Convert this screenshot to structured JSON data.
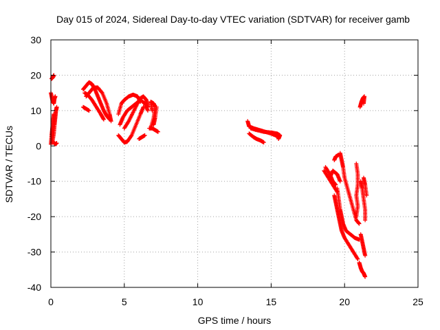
{
  "chart_data": {
    "type": "scatter",
    "title": "Day 015 of 2024, Sidereal Day-to-day VTEC variation (SDTVAR) for receiver gamb",
    "xlabel": "GPS time / hours",
    "ylabel": "SDTVAR / TECUs",
    "xlim": [
      0,
      25
    ],
    "ylim": [
      -40,
      30
    ],
    "xticks": [
      0,
      5,
      10,
      15,
      20,
      25
    ],
    "yticks": [
      -40,
      -30,
      -20,
      -10,
      0,
      10,
      20,
      30
    ],
    "grid": true,
    "marker": "plus",
    "color": "#ff0000",
    "tracks": [
      [
        [
          0.0,
          15.0
        ],
        [
          0.1,
          13.0
        ],
        [
          0.2,
          12.0
        ],
        [
          0.25,
          13.5
        ],
        [
          0.3,
          14.0
        ]
      ],
      [
        [
          0.0,
          0.5
        ],
        [
          0.05,
          3.0
        ],
        [
          0.1,
          5.0
        ],
        [
          0.15,
          7.0
        ],
        [
          0.2,
          9.0
        ]
      ],
      [
        [
          0.1,
          1.0
        ],
        [
          0.2,
          3.5
        ],
        [
          0.25,
          6.0
        ],
        [
          0.3,
          8.0
        ],
        [
          0.35,
          10.0
        ],
        [
          0.4,
          11.0
        ]
      ],
      [
        [
          0.05,
          19.0
        ],
        [
          0.15,
          19.5
        ],
        [
          0.2,
          20.0
        ]
      ],
      [
        [
          0.2,
          1.0
        ],
        [
          0.3,
          0.5
        ],
        [
          0.4,
          0.8
        ]
      ],
      [
        [
          2.2,
          11.0
        ],
        [
          2.4,
          10.5
        ],
        [
          2.6,
          10.0
        ]
      ],
      [
        [
          2.2,
          16.0
        ],
        [
          2.4,
          17.0
        ],
        [
          2.6,
          18.0
        ],
        [
          2.8,
          17.5
        ],
        [
          3.0,
          16.0
        ],
        [
          3.2,
          14.0
        ],
        [
          3.4,
          12.0
        ],
        [
          3.6,
          10.0
        ],
        [
          3.8,
          8.5
        ],
        [
          4.0,
          7.5
        ]
      ],
      [
        [
          2.4,
          14.0
        ],
        [
          2.6,
          15.0
        ],
        [
          2.9,
          16.5
        ],
        [
          3.2,
          16.5
        ],
        [
          3.5,
          15.0
        ],
        [
          3.8,
          12.0
        ],
        [
          4.0,
          9.0
        ],
        [
          4.1,
          7.0
        ]
      ],
      [
        [
          2.3,
          15.0
        ],
        [
          2.5,
          14.5
        ],
        [
          2.8,
          13.0
        ],
        [
          3.1,
          11.0
        ],
        [
          3.4,
          9.0
        ],
        [
          3.6,
          7.5
        ]
      ],
      [
        [
          4.6,
          9.0
        ],
        [
          4.8,
          12.0
        ],
        [
          5.0,
          13.0
        ],
        [
          5.3,
          14.0
        ],
        [
          5.6,
          14.5
        ],
        [
          5.9,
          14.0
        ],
        [
          6.1,
          12.5
        ]
      ],
      [
        [
          4.7,
          6.0
        ],
        [
          4.9,
          8.0
        ],
        [
          5.2,
          10.0
        ],
        [
          5.5,
          11.0
        ],
        [
          5.8,
          12.0
        ],
        [
          6.1,
          13.0
        ],
        [
          6.4,
          12.0
        ],
        [
          6.6,
          10.0
        ]
      ],
      [
        [
          4.6,
          3.0
        ],
        [
          4.8,
          2.0
        ],
        [
          5.0,
          1.0
        ],
        [
          5.2,
          1.2
        ],
        [
          5.5,
          3.0
        ],
        [
          5.8,
          6.0
        ],
        [
          6.1,
          9.0
        ],
        [
          6.3,
          11.0
        ]
      ],
      [
        [
          5.0,
          5.0
        ],
        [
          5.3,
          7.0
        ],
        [
          5.6,
          9.5
        ],
        [
          5.9,
          12.0
        ],
        [
          6.1,
          13.5
        ],
        [
          6.3,
          14.0
        ],
        [
          6.5,
          13.0
        ],
        [
          6.6,
          11.0
        ]
      ],
      [
        [
          6.0,
          2.0
        ],
        [
          6.2,
          2.5
        ],
        [
          6.4,
          3.0
        ]
      ],
      [
        [
          6.8,
          5.0
        ],
        [
          7.0,
          8.0
        ],
        [
          7.1,
          11.0
        ],
        [
          7.0,
          12.0
        ],
        [
          6.8,
          12.5
        ],
        [
          6.9,
          10.0
        ]
      ],
      [
        [
          7.0,
          6.0
        ],
        [
          7.1,
          8.0
        ],
        [
          7.2,
          11.0
        ]
      ],
      [
        [
          6.7,
          5.0
        ],
        [
          6.9,
          5.0
        ],
        [
          7.1,
          4.5
        ],
        [
          7.3,
          4.0
        ]
      ],
      [
        [
          13.4,
          7.0
        ],
        [
          13.5,
          5.5
        ],
        [
          13.8,
          5.0
        ],
        [
          14.2,
          4.5
        ],
        [
          14.6,
          4.0
        ],
        [
          15.0,
          3.5
        ],
        [
          15.3,
          3.0
        ],
        [
          15.5,
          2.5
        ]
      ],
      [
        [
          13.5,
          3.5
        ],
        [
          13.8,
          2.5
        ],
        [
          14.0,
          2.0
        ],
        [
          14.3,
          1.5
        ],
        [
          14.5,
          1.0
        ]
      ],
      [
        [
          13.6,
          5.0
        ],
        [
          14.0,
          4.5
        ],
        [
          14.5,
          4.0
        ],
        [
          15.0,
          3.8
        ],
        [
          15.4,
          3.5
        ],
        [
          15.6,
          3.0
        ],
        [
          15.5,
          2.0
        ]
      ],
      [
        [
          18.6,
          -7.0
        ],
        [
          18.9,
          -9.0
        ],
        [
          19.2,
          -11.0
        ],
        [
          19.5,
          -13.0
        ]
      ],
      [
        [
          18.7,
          -6.0
        ],
        [
          19.0,
          -8.0
        ],
        [
          19.2,
          -10.0
        ],
        [
          19.4,
          -11.0
        ]
      ],
      [
        [
          19.3,
          -14.0
        ],
        [
          19.4,
          -16.0
        ],
        [
          19.5,
          -18.0
        ],
        [
          19.6,
          -20.0
        ],
        [
          19.7,
          -22.0
        ],
        [
          19.8,
          -24.0
        ],
        [
          20.0,
          -26.0
        ],
        [
          20.3,
          -28.0
        ],
        [
          20.6,
          -30.0
        ],
        [
          20.9,
          -32.0
        ]
      ],
      [
        [
          19.5,
          -12.0
        ],
        [
          19.6,
          -15.0
        ],
        [
          19.7,
          -18.0
        ],
        [
          19.8,
          -20.0
        ],
        [
          19.9,
          -22.0
        ],
        [
          20.1,
          -24.0
        ],
        [
          20.4,
          -25.0
        ],
        [
          20.7,
          -26.0
        ],
        [
          21.0,
          -26.5
        ]
      ],
      [
        [
          19.7,
          -2.0
        ],
        [
          19.8,
          -4.0
        ],
        [
          19.9,
          -6.0
        ],
        [
          20.0,
          -9.0
        ],
        [
          20.2,
          -12.0
        ],
        [
          20.4,
          -15.0
        ],
        [
          20.6,
          -18.0
        ],
        [
          20.8,
          -21.0
        ],
        [
          21.0,
          -22.0
        ]
      ],
      [
        [
          19.3,
          -4.0
        ],
        [
          19.4,
          -3.0
        ],
        [
          19.6,
          -2.5
        ]
      ],
      [
        [
          19.0,
          -9.0
        ],
        [
          19.2,
          -7.0
        ],
        [
          19.5,
          -8.0
        ],
        [
          19.7,
          -10.0
        ]
      ],
      [
        [
          20.8,
          -5.0
        ],
        [
          20.9,
          -8.0
        ],
        [
          20.9,
          -11.0
        ],
        [
          20.8,
          -14.0
        ],
        [
          20.9,
          -17.0
        ],
        [
          20.8,
          -20.0
        ]
      ],
      [
        [
          21.1,
          -10.0
        ],
        [
          21.2,
          -12.0
        ],
        [
          21.3,
          -15.0
        ],
        [
          21.4,
          -18.0
        ],
        [
          21.4,
          -21.0
        ]
      ],
      [
        [
          21.3,
          -9.0
        ],
        [
          21.4,
          -11.0
        ],
        [
          21.5,
          -14.0
        ]
      ],
      [
        [
          21.1,
          -25.0
        ],
        [
          21.2,
          -27.0
        ],
        [
          21.3,
          -29.0
        ],
        [
          21.4,
          -31.0
        ]
      ],
      [
        [
          21.0,
          -33.0
        ],
        [
          21.1,
          -34.5
        ],
        [
          21.2,
          -35.5
        ],
        [
          21.3,
          -36.0
        ],
        [
          21.4,
          -37.0
        ]
      ],
      [
        [
          21.05,
          11.0
        ],
        [
          21.15,
          12.5
        ],
        [
          21.25,
          13.5
        ],
        [
          21.35,
          14.0
        ],
        [
          21.3,
          12.0
        ]
      ]
    ]
  }
}
